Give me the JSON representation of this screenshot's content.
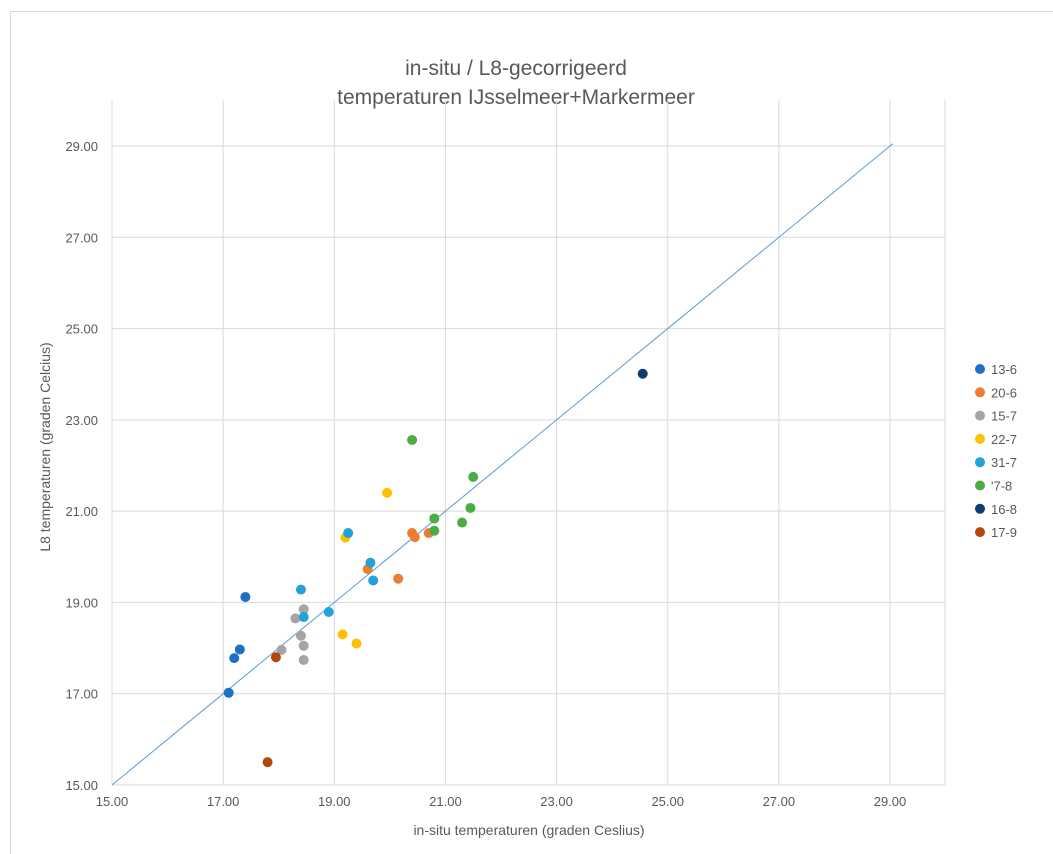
{
  "chart_data": {
    "type": "scatter",
    "title": "in-situ / L8-gecorrigeerd",
    "subtitle": "temperaturen IJsselmeer+Markermeer",
    "xlabel": "in-situ temperaturen (graden Ceslius)",
    "ylabel": "L8 temperaturen (graden Celcius)",
    "xlim": [
      15,
      30
    ],
    "ylim": [
      15,
      30
    ],
    "x_ticks": [
      "15.00",
      "17.00",
      "19.00",
      "21.00",
      "23.00",
      "25.00",
      "27.00",
      "29.00"
    ],
    "y_ticks": [
      "15.00",
      "17.00",
      "19.00",
      "21.00",
      "23.00",
      "25.00",
      "27.00",
      "29.00"
    ],
    "grid": "horizontal and vertical",
    "legend_position": "right",
    "reference_line": {
      "x": [
        15,
        29.05
      ],
      "y": [
        15,
        29.05
      ],
      "color": "#5b9bd5"
    },
    "series": [
      {
        "name": "13-6",
        "color": "#1f6fc5",
        "points": [
          [
            17.1,
            17.02
          ],
          [
            17.2,
            17.78
          ],
          [
            17.3,
            17.97
          ],
          [
            17.4,
            19.12
          ]
        ]
      },
      {
        "name": "20-6",
        "color": "#ed7d31",
        "points": [
          [
            19.6,
            19.73
          ],
          [
            20.15,
            19.52
          ],
          [
            20.4,
            20.52
          ],
          [
            20.45,
            20.43
          ],
          [
            20.7,
            20.52
          ]
        ]
      },
      {
        "name": "15-7",
        "color": "#a5a5a5",
        "points": [
          [
            18.05,
            17.96
          ],
          [
            18.3,
            18.65
          ],
          [
            18.4,
            18.27
          ],
          [
            18.45,
            18.85
          ],
          [
            18.45,
            18.05
          ],
          [
            18.45,
            17.74
          ]
        ]
      },
      {
        "name": "22-7",
        "color": "#ffc000",
        "points": [
          [
            19.15,
            18.3
          ],
          [
            19.2,
            20.42
          ],
          [
            19.4,
            18.1
          ],
          [
            19.95,
            21.4
          ]
        ]
      },
      {
        "name": "31-7",
        "color": "#23a2d9",
        "points": [
          [
            18.4,
            19.28
          ],
          [
            18.45,
            18.68
          ],
          [
            18.9,
            18.79
          ],
          [
            19.25,
            20.52
          ],
          [
            19.65,
            19.87
          ],
          [
            19.7,
            19.48
          ]
        ]
      },
      {
        "name": "'7-8",
        "color": "#4aad45",
        "points": [
          [
            20.4,
            22.56
          ],
          [
            20.8,
            20.84
          ],
          [
            20.8,
            20.57
          ],
          [
            21.3,
            20.75
          ],
          [
            21.45,
            21.07
          ],
          [
            21.5,
            21.75
          ]
        ]
      },
      {
        "name": "16-8",
        "color": "#0b3d73",
        "points": [
          [
            24.55,
            24.01
          ]
        ]
      },
      {
        "name": "17-9",
        "color": "#b5470d",
        "points": [
          [
            17.8,
            15.5
          ],
          [
            17.95,
            17.8
          ]
        ]
      }
    ]
  }
}
